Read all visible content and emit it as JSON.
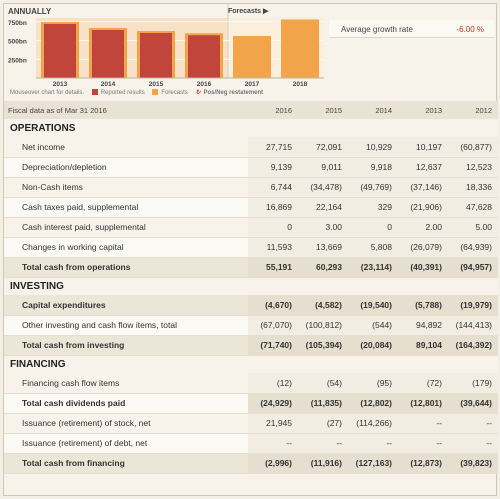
{
  "chart": {
    "title": "ANNUALLY",
    "forecasts_header": "Forecasts ▶",
    "growth_label": "Average growth rate",
    "growth_value": "-6.00 %",
    "legend": {
      "mouseover": "Mouseover chart for details.",
      "reported": "Reported results",
      "forecasts": "Forecasts",
      "posneg": "Pos/Neg restatement"
    }
  },
  "chart_data": {
    "type": "bar",
    "categories": [
      "2013",
      "2014",
      "2015",
      "2016",
      "2017",
      "2018"
    ],
    "series": [
      {
        "values": [
          720,
          640,
          600,
          570,
          null,
          null
        ]
      },
      {
        "values": [
          null,
          null,
          null,
          null,
          560,
          780
        ]
      }
    ],
    "ytick_labels": [
      "750bn",
      "500bn",
      "250bn"
    ],
    "yticks": [
      750,
      500,
      250
    ],
    "ylim": [
      0,
      800
    ],
    "colors": {
      "reported": "#c1453a",
      "reported_back": "#f2a44a",
      "forecast": "#f2a44a"
    }
  },
  "table": {
    "header": {
      "label": "Fiscal data as of Mar 31 2016",
      "years": [
        "2016",
        "2015",
        "2014",
        "2013",
        "2012"
      ]
    },
    "sections": [
      {
        "title": "OPERATIONS",
        "rows": [
          {
            "label": "Net income",
            "values": [
              "27,715",
              "72,091",
              "10,929",
              "10,197",
              "(60,877)"
            ],
            "total": false
          },
          {
            "label": "Depreciation/depletion",
            "values": [
              "9,139",
              "9,011",
              "9,918",
              "12,637",
              "12,523"
            ],
            "total": false
          },
          {
            "label": "Non-Cash items",
            "values": [
              "6,744",
              "(34,478)",
              "(49,769)",
              "(37,146)",
              "18,336"
            ],
            "total": false
          },
          {
            "label": "Cash taxes paid, supplemental",
            "values": [
              "16,869",
              "22,164",
              "329",
              "(21,906)",
              "47,628"
            ],
            "total": false
          },
          {
            "label": "Cash interest paid, supplemental",
            "values": [
              "0",
              "3.00",
              "0",
              "2.00",
              "5.00"
            ],
            "total": false
          },
          {
            "label": "Changes in working capital",
            "values": [
              "11,593",
              "13,669",
              "5,808",
              "(26,079)",
              "(64,939)"
            ],
            "total": false
          },
          {
            "label": "Total cash from operations",
            "values": [
              "55,191",
              "60,293",
              "(23,114)",
              "(40,391)",
              "(94,957)"
            ],
            "total": true
          }
        ]
      },
      {
        "title": "INVESTING",
        "rows": [
          {
            "label": "Capital expenditures",
            "values": [
              "(4,670)",
              "(4,582)",
              "(19,540)",
              "(5,788)",
              "(19,979)"
            ],
            "total": true
          },
          {
            "label": "Other investing and cash flow items, total",
            "values": [
              "(67,070)",
              "(100,812)",
              "(544)",
              "94,892",
              "(144,413)"
            ],
            "total": false
          },
          {
            "label": "Total cash from investing",
            "values": [
              "(71,740)",
              "(105,394)",
              "(20,084)",
              "89,104",
              "(164,392)"
            ],
            "total": true
          }
        ]
      },
      {
        "title": "FINANCING",
        "rows": [
          {
            "label": "Financing cash flow items",
            "values": [
              "(12)",
              "(54)",
              "(95)",
              "(72)",
              "(179)"
            ],
            "total": false
          },
          {
            "label": "Total cash dividends paid",
            "values": [
              "(24,929)",
              "(11,835)",
              "(12,802)",
              "(12,801)",
              "(39,644)"
            ],
            "total": true
          },
          {
            "label": "Issuance (retirement) of stock, net",
            "values": [
              "21,945",
              "(27)",
              "(114,266)",
              "--",
              "--"
            ],
            "total": false
          },
          {
            "label": "Issuance (retirement) of debt, net",
            "values": [
              "--",
              "--",
              "--",
              "--",
              "--"
            ],
            "total": false
          },
          {
            "label": "Total cash from financing",
            "values": [
              "(2,996)",
              "(11,916)",
              "(127,163)",
              "(12,873)",
              "(39,823)"
            ],
            "total": true
          }
        ]
      }
    ]
  }
}
